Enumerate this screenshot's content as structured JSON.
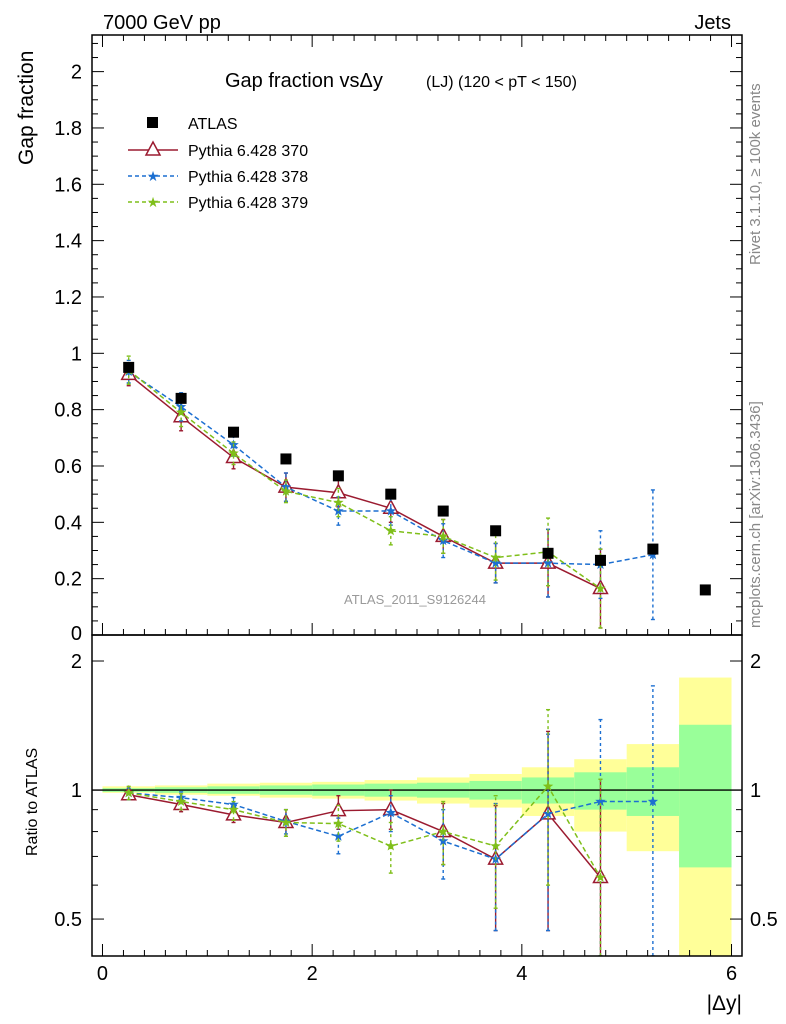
{
  "header": {
    "left": "7000 GeV pp",
    "right": "Jets"
  },
  "side_text": {
    "top": "Rivet 3.1.10, ≥ 100k events",
    "bottom": "mcplots.cern.ch [arXiv:1306.3436]"
  },
  "chart_data": {
    "type": "scatter",
    "title_main": "Gap fraction vsΔy",
    "title_sub": "(LJ) (120 < pT < 150)",
    "watermark": "ATLAS_2011_S9126244",
    "xlabel": "|Δy|",
    "ylabel_top": "Gap fraction",
    "ylabel_bottom": "Ratio to ATLAS",
    "xlim": [
      -0.1,
      6.1
    ],
    "ylim_top": [
      0,
      2.13
    ],
    "ylim_bottom": [
      0.41,
      2.3
    ],
    "ratio_scale": "log",
    "x_ticks": [
      "0",
      "2",
      "4",
      "6"
    ],
    "y_ticks_top": [
      "0.2",
      "0.4",
      "0.6",
      "0.8",
      "1",
      "1.2",
      "1.4",
      "1.6",
      "1.8",
      "2"
    ],
    "y_ticks_bottom": [
      "0.5",
      "1",
      "2"
    ],
    "legend_placement": "top-left",
    "x": [
      0.25,
      0.75,
      1.25,
      1.75,
      2.25,
      2.75,
      3.25,
      3.75,
      4.25,
      4.75,
      5.25,
      5.75
    ],
    "ratio_bands": [
      {
        "x": [
          0.0,
          0.5
        ],
        "inner": [
          0.99,
          1.01
        ],
        "outer": [
          0.985,
          1.02
        ]
      },
      {
        "x": [
          0.5,
          1.0
        ],
        "inner": [
          0.985,
          1.015
        ],
        "outer": [
          0.975,
          1.025
        ]
      },
      {
        "x": [
          1.0,
          1.5
        ],
        "inner": [
          0.98,
          1.02
        ],
        "outer": [
          0.97,
          1.035
        ]
      },
      {
        "x": [
          1.5,
          2.0
        ],
        "inner": [
          0.975,
          1.025
        ],
        "outer": [
          0.96,
          1.04
        ]
      },
      {
        "x": [
          2.0,
          2.5
        ],
        "inner": [
          0.97,
          1.03
        ],
        "outer": [
          0.955,
          1.045
        ]
      },
      {
        "x": [
          2.5,
          3.0
        ],
        "inner": [
          0.965,
          1.035
        ],
        "outer": [
          0.945,
          1.055
        ]
      },
      {
        "x": [
          3.0,
          3.5
        ],
        "inner": [
          0.96,
          1.04
        ],
        "outer": [
          0.93,
          1.07
        ]
      },
      {
        "x": [
          3.5,
          4.0
        ],
        "inner": [
          0.95,
          1.05
        ],
        "outer": [
          0.91,
          1.09
        ]
      },
      {
        "x": [
          4.0,
          4.5
        ],
        "inner": [
          0.93,
          1.07
        ],
        "outer": [
          0.87,
          1.13
        ]
      },
      {
        "x": [
          4.5,
          5.0
        ],
        "inner": [
          0.9,
          1.1
        ],
        "outer": [
          0.8,
          1.18
        ]
      },
      {
        "x": [
          5.0,
          5.5
        ],
        "inner": [
          0.87,
          1.13
        ],
        "outer": [
          0.72,
          1.28
        ]
      },
      {
        "x": [
          5.5,
          6.0
        ],
        "inner": [
          0.66,
          1.42
        ],
        "outer": [
          0.41,
          1.83
        ]
      }
    ],
    "series": [
      {
        "name": "ATLAS",
        "color": "#000000",
        "marker": "square",
        "line": "none",
        "x": [
          0.25,
          0.75,
          1.25,
          1.75,
          2.25,
          2.75,
          3.25,
          3.75,
          4.25,
          4.75,
          5.25,
          5.75
        ],
        "values": [
          0.95,
          0.84,
          0.72,
          0.625,
          0.565,
          0.5,
          0.44,
          0.37,
          0.29,
          0.265,
          0.305,
          0.16
        ],
        "ratio": [
          1,
          1,
          1,
          1,
          1,
          1,
          1,
          1,
          1,
          1,
          1,
          1
        ]
      },
      {
        "name": "Pythia 6.428 370",
        "color": "#9b1b30",
        "marker": "triangle",
        "line": "solid",
        "x": [
          0.25,
          0.75,
          1.25,
          1.75,
          2.25,
          2.75,
          3.25,
          3.75,
          4.25,
          4.75
        ],
        "values": [
          0.925,
          0.775,
          0.63,
          0.525,
          0.505,
          0.45,
          0.35,
          0.255,
          0.255,
          0.165
        ],
        "errors": [
          0.04,
          0.05,
          0.04,
          0.05,
          0.05,
          0.05,
          0.06,
          0.07,
          0.12,
          0.14
        ],
        "ratio": [
          0.975,
          0.925,
          0.875,
          0.84,
          0.895,
          0.9,
          0.8,
          0.69,
          0.88,
          0.625
        ],
        "ratio_err": [
          [
            0.95,
            1.0
          ],
          [
            0.89,
            0.96
          ],
          [
            0.84,
            0.91
          ],
          [
            0.78,
            0.9
          ],
          [
            0.81,
            0.97
          ],
          [
            0.81,
            1.0
          ],
          [
            0.67,
            0.93
          ],
          [
            0.47,
            0.92
          ],
          [
            0.47,
            1.37
          ],
          [
            0.41,
            1.06
          ]
        ]
      },
      {
        "name": "Pythia 6.428 378",
        "color": "#1c6fd1",
        "marker": "star",
        "line": "dashed",
        "x": [
          0.25,
          0.75,
          1.25,
          1.75,
          2.25,
          2.75,
          3.25,
          3.75,
          4.25,
          4.75,
          5.25
        ],
        "values": [
          0.935,
          0.81,
          0.675,
          0.525,
          0.44,
          0.44,
          0.335,
          0.255,
          0.255,
          0.25,
          0.285
        ],
        "errors": [
          0.04,
          0.05,
          0.04,
          0.05,
          0.05,
          0.05,
          0.06,
          0.07,
          0.12,
          0.12,
          0.23
        ],
        "ratio": [
          0.985,
          0.96,
          0.925,
          0.845,
          0.78,
          0.885,
          0.76,
          0.69,
          0.88,
          0.94,
          0.94
        ],
        "ratio_err": [
          [
            0.95,
            1.01
          ],
          [
            0.93,
            0.99
          ],
          [
            0.89,
            0.96
          ],
          [
            0.79,
            0.9
          ],
          [
            0.71,
            0.86
          ],
          [
            0.8,
            0.97
          ],
          [
            0.62,
            0.9
          ],
          [
            0.47,
            0.93
          ],
          [
            0.47,
            1.35
          ],
          [
            0.41,
            1.46
          ],
          [
            0.41,
            1.75
          ]
        ]
      },
      {
        "name": "Pythia 6.428 379",
        "color": "#7fbf1a",
        "marker": "star",
        "line": "dashed",
        "x": [
          0.25,
          0.75,
          1.25,
          1.75,
          2.25,
          2.75,
          3.25,
          3.75,
          4.25,
          4.75
        ],
        "values": [
          0.94,
          0.79,
          0.645,
          0.51,
          0.47,
          0.37,
          0.35,
          0.275,
          0.295,
          0.165
        ],
        "errors": [
          0.05,
          0.05,
          0.04,
          0.04,
          0.05,
          0.05,
          0.06,
          0.08,
          0.12,
          0.14
        ],
        "ratio": [
          0.985,
          0.94,
          0.9,
          0.84,
          0.835,
          0.74,
          0.8,
          0.74,
          1.02,
          0.625
        ],
        "ratio_err": [
          [
            0.95,
            1.02
          ],
          [
            0.9,
            0.98
          ],
          [
            0.85,
            0.94
          ],
          [
            0.78,
            0.9
          ],
          [
            0.76,
            0.92
          ],
          [
            0.64,
            0.84
          ],
          [
            0.67,
            0.94
          ],
          [
            0.53,
            0.97
          ],
          [
            0.6,
            1.54
          ],
          [
            0.41,
            1.06
          ]
        ]
      }
    ]
  }
}
